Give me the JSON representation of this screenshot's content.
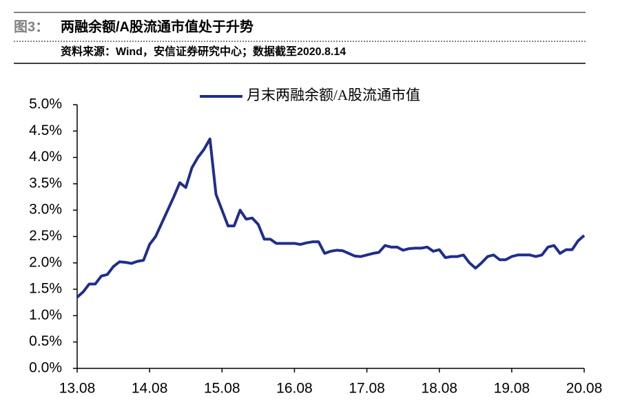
{
  "header": {
    "label": "图3：",
    "title": "两融余额/A股流通市值处于升势",
    "source": "资料来源：Wind，安信证券研究中心；数据截至2020.8.14"
  },
  "chart_data": {
    "type": "line",
    "categories": [
      "13.08",
      null,
      null,
      null,
      null,
      null,
      null,
      null,
      null,
      null,
      null,
      null,
      "14.08",
      null,
      null,
      null,
      null,
      null,
      null,
      null,
      null,
      null,
      null,
      null,
      "15.08",
      null,
      null,
      null,
      null,
      null,
      null,
      null,
      null,
      null,
      null,
      null,
      "16.08",
      null,
      null,
      null,
      null,
      null,
      null,
      null,
      null,
      null,
      null,
      null,
      "17.08",
      null,
      null,
      null,
      null,
      null,
      null,
      null,
      null,
      null,
      null,
      null,
      "18.08",
      null,
      null,
      null,
      null,
      null,
      null,
      null,
      null,
      null,
      null,
      null,
      "19.08",
      null,
      null,
      null,
      null,
      null,
      null,
      null,
      null,
      null,
      null,
      null,
      "20.08"
    ],
    "series": [
      {
        "name": "月末两融余额/A股流通市值",
        "color": "#1f2d8c",
        "values": [
          1.35,
          1.45,
          1.6,
          1.6,
          1.75,
          1.78,
          1.93,
          2.02,
          2.01,
          1.99,
          2.03,
          2.05,
          2.35,
          2.5,
          2.75,
          3.0,
          3.25,
          3.52,
          3.43,
          3.8,
          4.0,
          4.15,
          4.35,
          3.3,
          3.0,
          2.7,
          2.7,
          3.0,
          2.83,
          2.85,
          2.73,
          2.45,
          2.45,
          2.37,
          2.37,
          2.37,
          2.37,
          2.35,
          2.38,
          2.4,
          2.4,
          2.18,
          2.22,
          2.24,
          2.23,
          2.18,
          2.13,
          2.12,
          2.15,
          2.18,
          2.2,
          2.33,
          2.3,
          2.3,
          2.24,
          2.27,
          2.28,
          2.28,
          2.3,
          2.22,
          2.25,
          2.1,
          2.12,
          2.12,
          2.15,
          2.0,
          1.9,
          2.0,
          2.12,
          2.15,
          2.06,
          2.06,
          2.12,
          2.15,
          2.15,
          2.15,
          2.12,
          2.15,
          2.3,
          2.33,
          2.18,
          2.25,
          2.25,
          2.42,
          2.52
        ]
      }
    ],
    "ylim": [
      0,
      5
    ],
    "yticks": [
      {
        "value": 0,
        "label": "0.0%"
      },
      {
        "value": 0.5,
        "label": "0.5%"
      },
      {
        "value": 1,
        "label": "1.0%"
      },
      {
        "value": 1.5,
        "label": "1.5%"
      },
      {
        "value": 2,
        "label": "2.0%"
      },
      {
        "value": 2.5,
        "label": "2.5%"
      },
      {
        "value": 3,
        "label": "3.0%"
      },
      {
        "value": 3.5,
        "label": "3.5%"
      },
      {
        "value": 4,
        "label": "4.0%"
      },
      {
        "value": 4.5,
        "label": "4.5%"
      },
      {
        "value": 5,
        "label": "5.0%"
      }
    ],
    "grid": false,
    "legend": "top"
  }
}
